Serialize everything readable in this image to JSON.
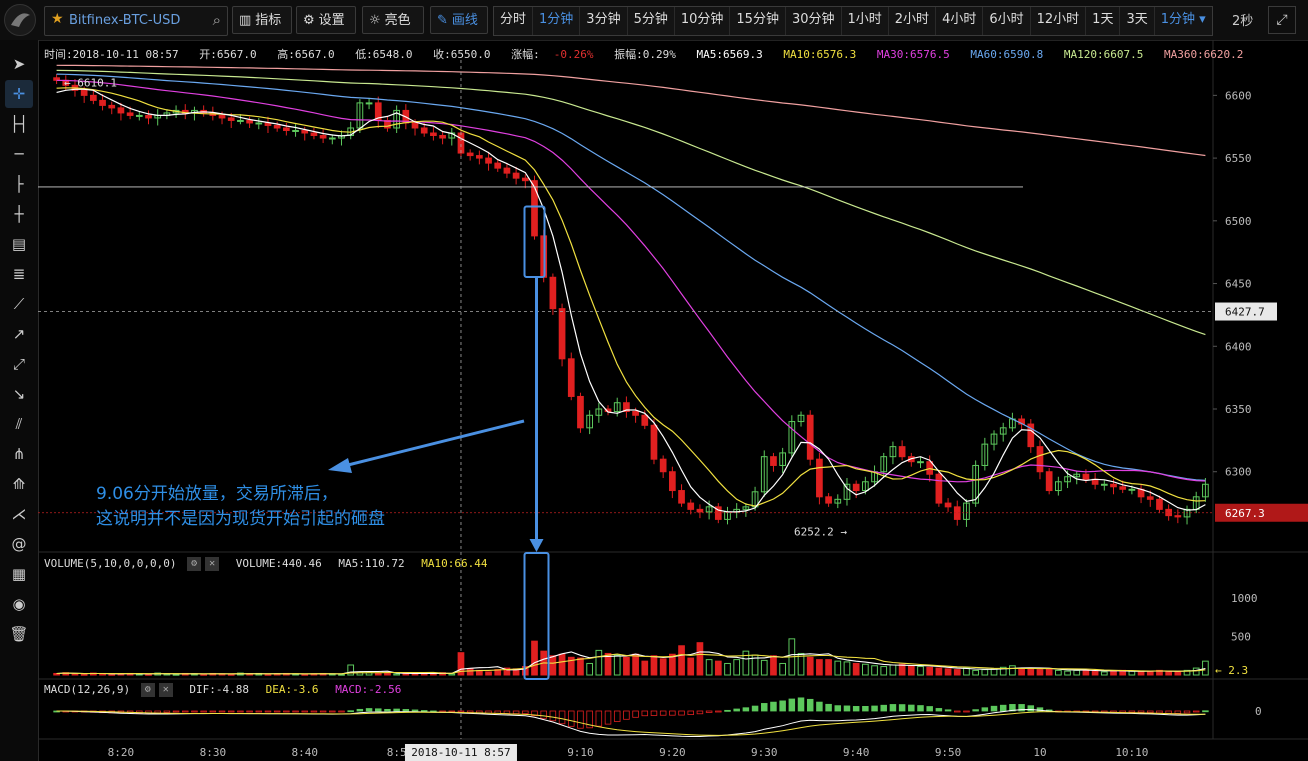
{
  "topbar": {
    "symbol": "Bitfinex-BTC-USD",
    "indicator_label": "指标",
    "settings_label": "设置",
    "theme_label": "亮色",
    "draw_label": "画线",
    "intervals": [
      "分时",
      "1分钟",
      "3分钟",
      "5分钟",
      "10分钟",
      "15分钟",
      "30分钟",
      "1小时",
      "2小时",
      "4小时",
      "6小时",
      "12小时",
      "1天",
      "3天",
      "1分钟 ▾"
    ],
    "selected_interval": "1分钟",
    "refresh_label": "2秒"
  },
  "info": {
    "time": "时间:2018-10-11 08:57",
    "open": "开:6567.0",
    "high": "高:6567.0",
    "low": "低:6548.0",
    "close": "收:6550.0",
    "change_label": "涨幅:",
    "change_value": "-0.26%",
    "amplitude": "振幅:0.29%",
    "ma5": "MA5:6569.3",
    "ma10": "MA10:6576.3",
    "ma30": "MA30:6576.5",
    "ma60": "MA60:6590.8",
    "ma120": "MA120:6607.5",
    "ma360": "MA360:6620.2"
  },
  "volume_info": {
    "label": "VOLUME(5,10,0,0,0,0)",
    "volume": "VOLUME:440.46",
    "ma5": "MA5:110.72",
    "ma10": "MA10:66.44"
  },
  "macd_info": {
    "label": "MACD(12,26,9)",
    "dif": "DIF:-4.88",
    "dea": "DEA:-3.6",
    "macd": "MACD:-2.56"
  },
  "price_axis": [
    "6600",
    "6550",
    "6500",
    "6450",
    "6400",
    "6350",
    "6300"
  ],
  "volume_axis": [
    "1000",
    "500"
  ],
  "macd_axis": [
    "0"
  ],
  "time_axis": [
    "8:20",
    "8:30",
    "8:40",
    "8:5",
    "9:10",
    "9:20",
    "9:30",
    "9:40",
    "9:50",
    "10",
    "10:10"
  ],
  "crosshair_time": "2018-10-11 8:57",
  "price_tag_cursor": "6427.7",
  "price_tag_last": "6267.3",
  "high_marker": "6610.1",
  "low_marker": "6252.2",
  "volume_marker": "2.3",
  "annotation": {
    "line1": "9.06分开始放量，交易所滞后，",
    "line2": "这说明并不是因为现货开始引起的砸盘"
  },
  "colors": {
    "up": "#5dc85d",
    "down": "#e02020",
    "ma5": "#ffffff",
    "ma10": "#f0e040",
    "ma30": "#e040e0",
    "ma60": "#6aa8f0",
    "ma120": "#c8e890",
    "ma360": "#f0a0a0",
    "accent": "#4a90e2",
    "annotation": "#2f8fe6"
  },
  "chart_data": {
    "type": "candlestick",
    "symbol": "Bitfinex-BTC-USD",
    "interval": "1分钟",
    "ylim": [
      6240,
      6625
    ],
    "close": [
      6612,
      6608,
      6604,
      6600,
      6596,
      6592,
      6590,
      6586,
      6584,
      6584,
      6582,
      6584,
      6586,
      6588,
      6586,
      6588,
      6586,
      6584,
      6582,
      6580,
      6580,
      6578,
      6578,
      6576,
      6574,
      6572,
      6572,
      6570,
      6568,
      6566,
      6566,
      6568,
      6574,
      6594,
      6594,
      6580,
      6574,
      6588,
      6578,
      6574,
      6570,
      6568,
      6566,
      6570,
      6554,
      6552,
      6550,
      6546,
      6542,
      6538,
      6534,
      6532,
      6488,
      6455,
      6430,
      6390,
      6360,
      6335,
      6345,
      6350,
      6348,
      6355,
      6348,
      6345,
      6337,
      6310,
      6300,
      6285,
      6275,
      6270,
      6268,
      6272,
      6262,
      6268,
      6270,
      6272,
      6284,
      6312,
      6305,
      6315,
      6340,
      6345,
      6310,
      6280,
      6275,
      6278,
      6290,
      6285,
      6292,
      6300,
      6312,
      6320,
      6312,
      6308,
      6308,
      6298,
      6275,
      6272,
      6262,
      6275,
      6305,
      6322,
      6330,
      6335,
      6342,
      6338,
      6320,
      6300,
      6285,
      6292,
      6296,
      6298,
      6294,
      6290,
      6290,
      6288,
      6286,
      6286,
      6280,
      6278,
      6270,
      6265,
      6264,
      6270,
      6280,
      6290
    ],
    "volume": [
      20,
      30,
      15,
      10,
      25,
      20,
      10,
      15,
      20,
      15,
      10,
      25,
      15,
      10,
      20,
      15,
      10,
      20,
      15,
      10,
      25,
      15,
      20,
      10,
      15,
      20,
      15,
      10,
      15,
      20,
      15,
      10,
      130,
      40,
      30,
      20,
      25,
      15,
      20,
      15,
      25,
      20,
      30,
      15,
      290,
      80,
      60,
      40,
      70,
      90,
      80,
      110,
      440,
      310,
      250,
      270,
      230,
      220,
      150,
      320,
      280,
      260,
      230,
      270,
      180,
      250,
      210,
      270,
      380,
      220,
      420,
      200,
      180,
      150,
      200,
      310,
      260,
      190,
      250,
      150,
      470,
      280,
      230,
      200,
      200,
      180,
      170,
      150,
      140,
      120,
      110,
      130,
      140,
      120,
      110,
      100,
      90,
      80,
      70,
      90,
      60,
      70,
      80,
      100,
      120,
      90,
      80,
      70,
      80,
      60,
      50,
      60,
      70,
      50,
      40,
      50,
      60,
      50,
      40,
      50,
      60,
      50,
      40,
      60,
      90,
      180
    ],
    "ma_params": [
      "MA5",
      "MA10",
      "MA30",
      "MA60",
      "MA120",
      "MA360"
    ],
    "ma_start": {
      "MA5": 6600,
      "MA10": 6605,
      "MA30": 6612,
      "MA60": 6617,
      "MA120": 6620,
      "MA360": 6624
    },
    "ma_end": {
      "MA5": 6286,
      "MA10": 6296,
      "MA30": 6296,
      "MA60": 6296,
      "MA120": 6412,
      "MA360": 6553
    },
    "price_axis_ticks": [
      6600,
      6550,
      6500,
      6450,
      6400,
      6350,
      6300
    ],
    "volume_axis_ticks": [
      1000,
      500
    ],
    "high": 6610.1,
    "low": 6252.2
  }
}
